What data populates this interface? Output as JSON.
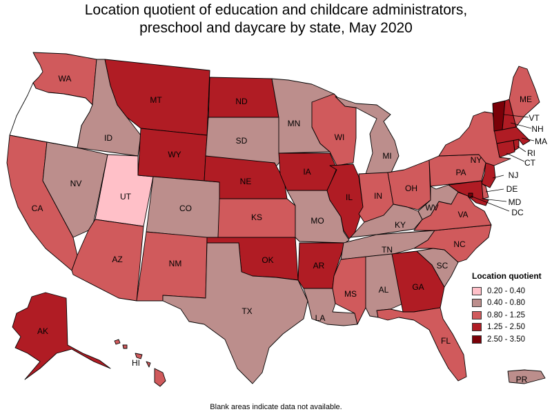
{
  "title_line1": "Location quotient of education and childcare administrators,",
  "title_line2": "preschool and daycare by state, May 2020",
  "footnote": "Blank areas indicate data not available.",
  "legend": {
    "title": "Location quotient",
    "classes": [
      {
        "label": "0.20 - 0.40",
        "color": "#ffc0c8"
      },
      {
        "label": "0.40 - 0.80",
        "color": "#bc8e8c"
      },
      {
        "label": "0.80 - 1.25",
        "color": "#d05a5c"
      },
      {
        "label": "1.25 - 2.50",
        "color": "#b01c24"
      },
      {
        "label": "2.50 - 3.50",
        "color": "#7a0008"
      }
    ]
  },
  "states": {
    "WA": {
      "label": "WA",
      "class": 2
    },
    "OR": {
      "label": "",
      "class": null
    },
    "CA": {
      "label": "CA",
      "class": 2
    },
    "ID": {
      "label": "ID",
      "class": 1
    },
    "NV": {
      "label": "NV",
      "class": 1
    },
    "UT": {
      "label": "UT",
      "class": 0
    },
    "AZ": {
      "label": "AZ",
      "class": 2
    },
    "MT": {
      "label": "MT",
      "class": 3
    },
    "WY": {
      "label": "WY",
      "class": 3
    },
    "CO": {
      "label": "CO",
      "class": 1
    },
    "NM": {
      "label": "NM",
      "class": 2
    },
    "ND": {
      "label": "ND",
      "class": 3
    },
    "SD": {
      "label": "SD",
      "class": 1
    },
    "NE": {
      "label": "NE",
      "class": 3
    },
    "KS": {
      "label": "KS",
      "class": 2
    },
    "OK": {
      "label": "OK",
      "class": 3
    },
    "TX": {
      "label": "TX",
      "class": 1
    },
    "MN": {
      "label": "MN",
      "class": 1
    },
    "IA": {
      "label": "IA",
      "class": 3
    },
    "MO": {
      "label": "MO",
      "class": 1
    },
    "AR": {
      "label": "AR",
      "class": 3
    },
    "LA": {
      "label": "LA",
      "class": 1
    },
    "WI": {
      "label": "WI",
      "class": 2
    },
    "IL": {
      "label": "IL",
      "class": 3
    },
    "MI": {
      "label": "MI",
      "class": 1
    },
    "IN": {
      "label": "IN",
      "class": 2
    },
    "OH": {
      "label": "OH",
      "class": 2
    },
    "KY": {
      "label": "KY",
      "class": 1
    },
    "TN": {
      "label": "TN",
      "class": 1
    },
    "MS": {
      "label": "MS",
      "class": 2
    },
    "AL": {
      "label": "AL",
      "class": 1
    },
    "GA": {
      "label": "GA",
      "class": 3
    },
    "FL": {
      "label": "FL",
      "class": 2
    },
    "SC": {
      "label": "SC",
      "class": 1
    },
    "NC": {
      "label": "NC",
      "class": 2
    },
    "VA": {
      "label": "VA",
      "class": 2
    },
    "WV": {
      "label": "WV",
      "class": 1
    },
    "PA": {
      "label": "PA",
      "class": 2
    },
    "NY": {
      "label": "NY",
      "class": 2
    },
    "ME": {
      "label": "ME",
      "class": 2
    },
    "VT": {
      "label": "VT",
      "class": 4
    },
    "NH": {
      "label": "NH",
      "class": 3
    },
    "MA": {
      "label": "MA",
      "class": 3
    },
    "CT": {
      "label": "CT",
      "class": 3
    },
    "RI": {
      "label": "RI",
      "class": 3
    },
    "NJ": {
      "label": "NJ",
      "class": 3
    },
    "DE": {
      "label": "DE",
      "class": 2
    },
    "MD": {
      "label": "MD",
      "class": 3
    },
    "DC": {
      "label": "DC",
      "class": 4
    },
    "AK": {
      "label": "AK",
      "class": 3
    },
    "HI": {
      "label": "HI",
      "class": 2
    },
    "PR": {
      "label": "PR",
      "class": 1
    }
  }
}
